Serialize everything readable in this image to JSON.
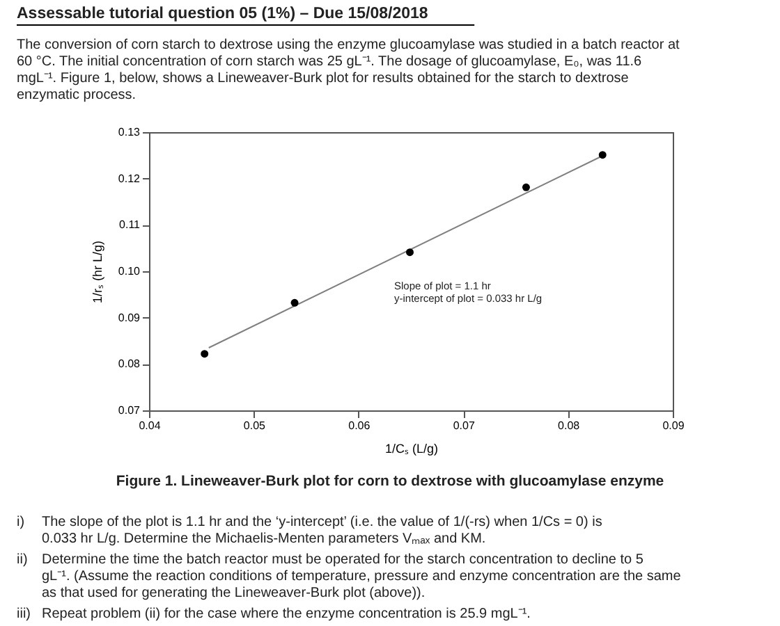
{
  "chart_data": {
    "type": "scatter",
    "title": "Assessable tutorial question 05 (1%) – Due 15/08/2018",
    "xlabel": "1/Cₛ (L/g)",
    "ylabel": "1/rₛ (hr L/g)",
    "x": [
      0.0453,
      0.0539,
      0.0649,
      0.076,
      0.0833
    ],
    "series": [
      {
        "color": "#000000",
        "values": [
          0.0822,
          0.0932,
          0.1041,
          0.1181,
          0.1251
        ]
      },
      {
        "type": "line",
        "marker": "none",
        "line_style": "solid",
        "color": "#808080",
        "x": [
          0.0457,
          0.0833
        ],
        "values": [
          0.0835,
          0.1249
        ]
      }
    ],
    "xlim": [
      0.04,
      0.09
    ],
    "xticks": [
      0.04,
      0.05,
      0.06,
      0.07,
      0.08,
      0.09
    ],
    "ylim": [
      0.07,
      0.13
    ],
    "yticks": [
      0.07,
      0.08,
      0.09,
      {
        "value": 0.1,
        "label": "0.10"
      },
      0.11,
      0.12,
      0.13
    ],
    "grid": false,
    "marker": "circle",
    "annotations": [
      "The conversion of corn starch to dextrose using the enzyme glucoamylase was studied in a batch reactor at 60 °C. The initial concentration of corn starch was 25 gL⁻¹. The dosage of glucoamylase, E₀, was 11.6 mgL⁻¹. Figure 1, below, shows a Lineweaver-Burk plot for results obtained for the starch to dextrose enzymatic process.",
      "Slope of plot = 1.1 hr",
      "y-intercept of plot = 0.033 hr L/g",
      "Figure 1. Lineweaver-Burk plot for corn to dextrose with glucoamylase enzyme",
      "i) The slope of the plot is 1.1 hr and the ‘y-intercept’ (i.e. the value of 1/(-rs) when 1/Cs = 0) is 0.033 hr L/g. Determine the Michaelis-Menten parameters Vₘₐₓ and KM.",
      "ii) Determine the time the batch reactor must be operated for the starch concentration to decline to 5 gL⁻¹. (Assume the reaction conditions of temperature, pressure and enzyme concentration are the same as that used for generating the Lineweaver-Burk plot (above)).",
      "iii) Repeat problem (ii) for the case where the enzyme concentration is 25.9 mgL⁻¹."
    ]
  }
}
